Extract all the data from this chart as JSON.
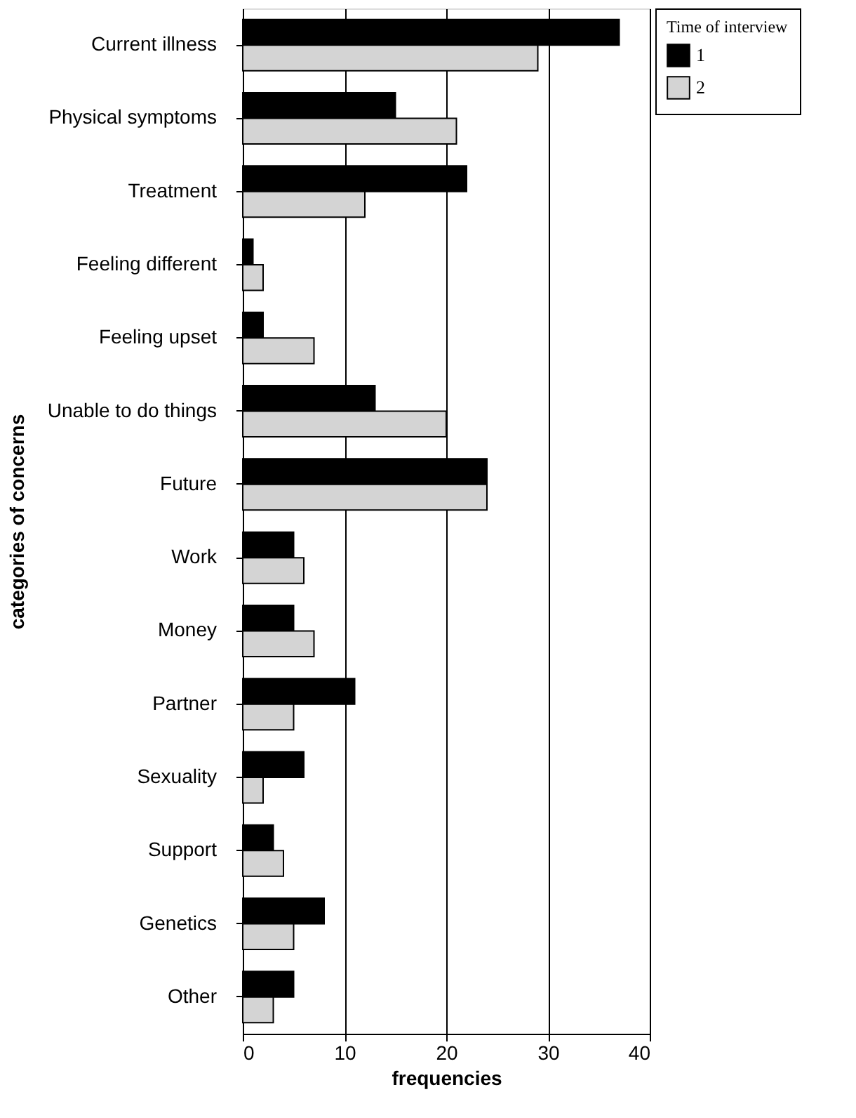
{
  "chart_data": {
    "type": "bar",
    "orientation": "horizontal",
    "xlabel": "frequencies",
    "ylabel": "categories of concerns",
    "legend_title": "Time of interview",
    "categories": [
      "Current illness",
      "Physical symptoms",
      "Treatment",
      "Feeling different",
      "Feeling upset",
      "Unable to do things",
      "Future",
      "Work",
      "Money",
      "Partner",
      "Sexuality",
      "Support",
      "Genetics",
      "Other"
    ],
    "series": [
      {
        "name": "1",
        "color": "#000000",
        "values": [
          37,
          15,
          22,
          1,
          2,
          13,
          24,
          5,
          5,
          11,
          6,
          3,
          8,
          5
        ]
      },
      {
        "name": "2",
        "color": "#d4d4d4",
        "values": [
          29,
          21,
          12,
          2,
          7,
          20,
          24,
          6,
          7,
          5,
          2,
          4,
          5,
          3
        ]
      }
    ],
    "xlim": [
      0,
      40
    ],
    "xticks": [
      0,
      10,
      20,
      30,
      40
    ],
    "grid": "x",
    "legend": "right"
  }
}
